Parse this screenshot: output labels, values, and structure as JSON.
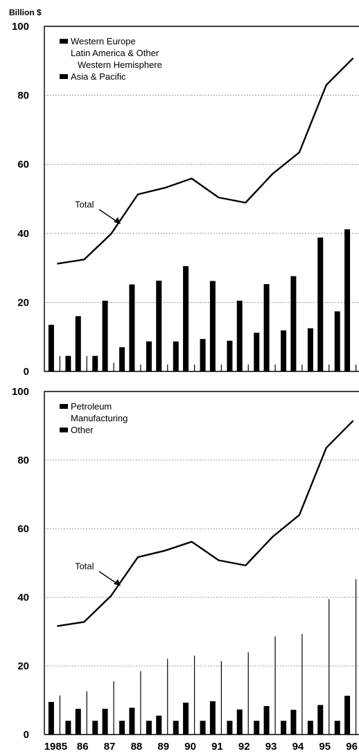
{
  "chart_data": [
    {
      "type": "bar",
      "unit_label": "Billion $",
      "x": [
        "1985",
        "86",
        "87",
        "88",
        "89",
        "90",
        "91",
        "92",
        "93",
        "94",
        "95",
        "96"
      ],
      "ylim": [
        0,
        100
      ],
      "yticks": [
        "0",
        "20",
        "40",
        "60",
        "80",
        "100"
      ],
      "grid": true,
      "legend_position": "top-left",
      "legend": [
        "Western Europe",
        "Latin America & Other Western Hemisphere",
        "Asia & Pacific"
      ],
      "series": [
        {
          "name": "Western Europe",
          "values": [
            13.5,
            16,
            20.5,
            25.2,
            26.3,
            30.5,
            26.2,
            20.5,
            25.3,
            27.6,
            38.8,
            41.2
          ],
          "color": "#000000"
        },
        {
          "name": "Latin America & Other Western Hemisphere",
          "values": [
            4.5,
            4.5,
            2.5,
            2,
            2,
            2,
            2,
            2,
            2,
            2,
            2,
            2
          ],
          "color": "#000000"
        },
        {
          "name": "Asia & Pacific",
          "values": [
            4.5,
            4.5,
            7,
            8.7,
            8.7,
            9.4,
            8.9,
            11.2,
            11.9,
            12.5,
            17.4,
            18.7
          ],
          "color": "#000000"
        }
      ],
      "total": {
        "label": "Total",
        "values": [
          31.2,
          32.4,
          39.8,
          51.3,
          53.2,
          55.9,
          50.4,
          48.9,
          57.2,
          63.5,
          83,
          90.8
        ]
      }
    },
    {
      "type": "bar",
      "x": [
        "1985",
        "86",
        "87",
        "88",
        "89",
        "90",
        "91",
        "92",
        "93",
        "94",
        "95",
        "96"
      ],
      "ylim": [
        0,
        100
      ],
      "yticks": [
        "0",
        "20",
        "40",
        "60",
        "80",
        "100"
      ],
      "grid": true,
      "legend_position": "top-left",
      "legend": [
        "Petroleum",
        "Manufacturing",
        "Other"
      ],
      "series": [
        {
          "name": "Petroleum",
          "values": [
            9.5,
            7.5,
            7.5,
            7.8,
            5.5,
            9.3,
            9.7,
            7.3,
            8.3,
            7.2,
            8.6,
            11.3
          ],
          "color": "#000000"
        },
        {
          "name": "Manufacturing",
          "values": [
            11.4,
            12.6,
            15.5,
            18.5,
            22.1,
            23,
            21.4,
            24,
            28.6,
            29.3,
            39.5,
            45.3
          ],
          "color": "#000000"
        },
        {
          "name": "Other",
          "values": [
            4,
            4,
            4,
            4,
            4,
            4,
            4,
            4,
            4,
            4,
            4,
            4
          ],
          "color": "#000000"
        }
      ],
      "total": {
        "label": "Total",
        "values": [
          31.6,
          32.8,
          40.4,
          51.7,
          53.6,
          56.2,
          50.8,
          49.3,
          57.6,
          64,
          83.6,
          91.5
        ]
      }
    }
  ]
}
